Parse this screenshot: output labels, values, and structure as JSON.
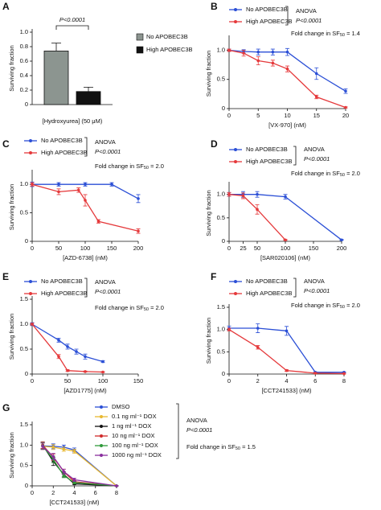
{
  "chart_data": [
    {
      "label": "A",
      "type": "bar",
      "ylabel": "Surviving fraction",
      "xlabel": "[Hydroxyurea] (50 μM)",
      "annotation": "P<0.0001",
      "ylim": [
        0,
        1.0
      ],
      "yticks": [
        0,
        0.2,
        0.4,
        0.6,
        0.8,
        {
          "value": 1,
          "label": "1.0"
        }
      ],
      "series": [
        {
          "name": "No APOBEC3B",
          "color": "#8c9590",
          "values": [
            0.74
          ],
          "errors": [
            0.11
          ]
        },
        {
          "name": "High APOBEC3B",
          "color": "#111111",
          "values": [
            0.18
          ],
          "errors": [
            0.06
          ]
        }
      ]
    },
    {
      "label": "B",
      "type": "line",
      "ylabel": "Surviving fraction",
      "xlabel": "[VX-970] (nM)",
      "test": "ANOVA",
      "p_value": "P<0.0001",
      "fold_change": {
        "prefix": "Fold change in SF",
        "subscript": "50",
        "suffix": " = 1.4"
      },
      "xlim": [
        0,
        20
      ],
      "xticks": [
        0,
        5,
        10,
        15,
        20
      ],
      "ylim": [
        0,
        1.2
      ],
      "yticks": [
        0,
        0.5,
        {
          "value": 1,
          "label": "1.0"
        }
      ],
      "series": [
        {
          "name": "No APOBEC3B",
          "color": "#2b4fd6",
          "x": [
            0,
            2.5,
            5,
            7.5,
            10,
            15,
            20
          ],
          "values": [
            1.0,
            0.98,
            0.97,
            0.97,
            0.97,
            0.6,
            0.3
          ],
          "errors": [
            0.02,
            0.03,
            0.05,
            0.05,
            0.06,
            0.1,
            0.04
          ]
        },
        {
          "name": "High APOBEC3B",
          "color": "#e5393b",
          "x": [
            0,
            2.5,
            5,
            7.5,
            10,
            15,
            20
          ],
          "values": [
            1.0,
            0.95,
            0.82,
            0.78,
            0.68,
            0.2,
            0.02
          ],
          "errors": [
            0.02,
            0.05,
            0.07,
            0.05,
            0.05,
            0.03,
            0.01
          ]
        }
      ]
    },
    {
      "label": "C",
      "type": "line",
      "ylabel": "Surviving fraction",
      "xlabel": "[AZD-6738] (nM)",
      "test": "ANOVA",
      "p_value": "P<0.0001",
      "fold_change": {
        "prefix": "Fold change in SF",
        "subscript": "50",
        "suffix": " = 2.0"
      },
      "xlim": [
        0,
        200
      ],
      "xticks": [
        0,
        50,
        100,
        150,
        200
      ],
      "ylim": [
        0,
        1.2
      ],
      "yticks": [
        0,
        0.5,
        {
          "value": 1,
          "label": "1.0"
        }
      ],
      "series": [
        {
          "name": "No APOBEC3B",
          "color": "#2b4fd6",
          "x": [
            0,
            50,
            100,
            150,
            200
          ],
          "values": [
            1.0,
            1.0,
            1.0,
            1.0,
            0.75
          ],
          "errors": [
            0.04,
            0.03,
            0.03,
            0.03,
            0.07
          ]
        },
        {
          "name": "High APOBEC3B",
          "color": "#e5393b",
          "x": [
            0,
            50,
            87.5,
            100,
            125,
            200
          ],
          "values": [
            1.0,
            0.87,
            0.9,
            0.72,
            0.35,
            0.18
          ],
          "errors": [
            0.03,
            0.05,
            0.04,
            0.1,
            0.03,
            0.04
          ]
        }
      ]
    },
    {
      "label": "D",
      "type": "line",
      "ylabel": "Surviving fraction",
      "xlabel": "[SAR020106] (nM)",
      "test": "ANOVA",
      "p_value": "P<0.0001",
      "fold_change": {
        "prefix": "Fold change in SF",
        "subscript": "50",
        "suffix": " = 2.0"
      },
      "xlim": [
        0,
        200
      ],
      "xticks": [
        0,
        25,
        50,
        100,
        150,
        200
      ],
      "ylim": [
        0,
        1.2
      ],
      "yticks": [
        0,
        0.5,
        {
          "value": 1,
          "label": "1.0"
        }
      ],
      "series": [
        {
          "name": "No APOBEC3B",
          "color": "#2b4fd6",
          "x": [
            0,
            25,
            50,
            100,
            200
          ],
          "values": [
            1.0,
            1.0,
            1.0,
            0.95,
            0.03
          ],
          "errors": [
            0.04,
            0.06,
            0.06,
            0.05,
            0.01
          ]
        },
        {
          "name": "High APOBEC3B",
          "color": "#e5393b",
          "x": [
            0,
            25,
            50,
            100
          ],
          "values": [
            1.0,
            0.97,
            0.68,
            0.03
          ],
          "errors": [
            0.04,
            0.06,
            0.1,
            0.01
          ]
        }
      ]
    },
    {
      "label": "E",
      "type": "line",
      "ylabel": "Surviving fraction",
      "xlabel": "[AZD1775] (nM)",
      "test": "ANOVA",
      "p_value": "P<0.0001",
      "fold_change": {
        "prefix": "Fold change in SF",
        "subscript": "50",
        "suffix": " = 2.0"
      },
      "xlim": [
        0,
        150
      ],
      "xticks": [
        0,
        50,
        100,
        150
      ],
      "ylim": [
        0,
        1.5
      ],
      "yticks": [
        0,
        0.5,
        {
          "value": 1,
          "label": "1.0"
        },
        1.5
      ],
      "series": [
        {
          "name": "No APOBEC3B",
          "color": "#2b4fd6",
          "x": [
            0,
            37.5,
            50,
            62.5,
            75,
            100
          ],
          "values": [
            1.0,
            0.68,
            0.55,
            0.45,
            0.35,
            0.25
          ],
          "errors": [
            0.03,
            0.04,
            0.05,
            0.05,
            0.05,
            0.02
          ]
        },
        {
          "name": "High APOBEC3B",
          "color": "#e5393b",
          "x": [
            0,
            37.5,
            50,
            75,
            100
          ],
          "values": [
            1.0,
            0.35,
            0.07,
            0.05,
            0.04
          ],
          "errors": [
            0.02,
            0.04,
            0.02,
            0.01,
            0.01
          ]
        }
      ]
    },
    {
      "label": "F",
      "type": "line",
      "ylabel": "Surviving fraction",
      "xlabel": "[CCT241533] (nM)",
      "test": "ANOVA",
      "p_value": "P<0.0001",
      "fold_change": {
        "prefix": "Fold change in SF",
        "subscript": "50",
        "suffix": " = 2.0"
      },
      "xlim": [
        0,
        8
      ],
      "xticks": [
        0,
        2,
        4,
        6,
        8
      ],
      "ylim": [
        0,
        1.5
      ],
      "yticks": [
        0,
        0.5,
        {
          "value": 1,
          "label": "1.0"
        },
        1.5
      ],
      "series": [
        {
          "name": "No APOBEC3B",
          "color": "#2b4fd6",
          "x": [
            0,
            2,
            4,
            6,
            8
          ],
          "values": [
            1.03,
            1.03,
            0.97,
            0.04,
            0.04
          ],
          "errors": [
            0.05,
            0.1,
            0.1,
            0.01,
            0.01
          ]
        },
        {
          "name": "High APOBEC3B",
          "color": "#e5393b",
          "x": [
            0,
            2,
            4,
            6,
            8
          ],
          "values": [
            1.0,
            0.6,
            0.08,
            0.02,
            0.01
          ],
          "errors": [
            0.03,
            0.04,
            0.02,
            0.01,
            0.01
          ]
        }
      ]
    },
    {
      "label": "G",
      "type": "line",
      "ylabel": "Surviving fraction",
      "xlabel": "[CCT241533] (nM)",
      "test": "ANOVA",
      "p_value": "P<0.0001",
      "fold_change": {
        "prefix": "Fold change in SF",
        "subscript": "50",
        "suffix": " = 1.5"
      },
      "xlim": [
        0,
        8
      ],
      "xticks": [
        0,
        2,
        4,
        6,
        8
      ],
      "ylim": [
        0,
        1.5
      ],
      "yticks": [
        0,
        0.5,
        {
          "value": 1,
          "label": "1.0"
        },
        1.5
      ],
      "series": [
        {
          "name": "DMSO",
          "color": "#2b4fd6",
          "x": [
            1,
            2,
            3,
            4,
            8
          ],
          "values": [
            0.98,
            0.97,
            0.95,
            0.88,
            0.0
          ],
          "errors": [
            0.08,
            0.06,
            0.05,
            0.05,
            0.01
          ]
        },
        {
          "name": "0.1 ng ml⁻¹ DOX",
          "color": "#e8b830",
          "x": [
            1,
            2,
            3,
            4,
            8
          ],
          "values": [
            0.97,
            0.95,
            0.9,
            0.85,
            0.0
          ],
          "errors": [
            0.08,
            0.06,
            0.05,
            0.05,
            0.01
          ]
        },
        {
          "name": "1 ng ml⁻¹ DOX",
          "color": "#111111",
          "x": [
            1,
            2,
            3,
            4,
            8
          ],
          "values": [
            1.0,
            0.6,
            0.28,
            0.05,
            0.0
          ],
          "errors": [
            0.08,
            0.1,
            0.06,
            0.02,
            0.01
          ]
        },
        {
          "name": "10 ng ml⁻¹ DOX",
          "color": "#d02a2a",
          "x": [
            1,
            2,
            3,
            4,
            8
          ],
          "values": [
            1.0,
            0.7,
            0.35,
            0.1,
            0.0
          ],
          "errors": [
            0.08,
            0.08,
            0.06,
            0.03,
            0.01
          ]
        },
        {
          "name": "100 ng ml⁻¹ DOX",
          "color": "#2f9a3a",
          "x": [
            1,
            2,
            3,
            4,
            8
          ],
          "values": [
            0.98,
            0.65,
            0.25,
            0.08,
            0.0
          ],
          "errors": [
            0.08,
            0.08,
            0.05,
            0.03,
            0.01
          ]
        },
        {
          "name": "1000 ng ml⁻¹ DOX",
          "color": "#8a2f9e",
          "x": [
            1,
            2,
            3,
            4,
            8
          ],
          "values": [
            0.97,
            0.72,
            0.35,
            0.15,
            0.0
          ],
          "errors": [
            0.08,
            0.08,
            0.06,
            0.04,
            0.01
          ]
        }
      ]
    }
  ]
}
